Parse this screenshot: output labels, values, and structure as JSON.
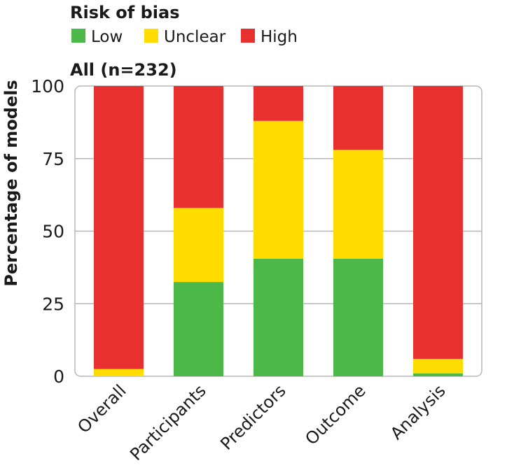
{
  "chart_data": {
    "type": "bar",
    "stacked": true,
    "legend_title": "Risk of bias",
    "title": "All (n=232)",
    "xlabel": "",
    "ylabel": "Percentage of models",
    "ylim": [
      0,
      100
    ],
    "yticks": [
      0,
      25,
      50,
      75,
      100
    ],
    "grid": true,
    "legend_position": "top-left",
    "categories": [
      "Overall",
      "Participants",
      "Predictors",
      "Outcome",
      "Analysis"
    ],
    "series": [
      {
        "name": "Low",
        "color": "#4cb848",
        "values": [
          0,
          32.5,
          40.5,
          40.5,
          1
        ]
      },
      {
        "name": "Unclear",
        "color": "#ffdc00",
        "values": [
          2.5,
          25.5,
          47.5,
          37.5,
          5
        ]
      },
      {
        "name": "High",
        "color": "#e8302e",
        "values": [
          97.5,
          42,
          12,
          22,
          94
        ]
      }
    ]
  }
}
